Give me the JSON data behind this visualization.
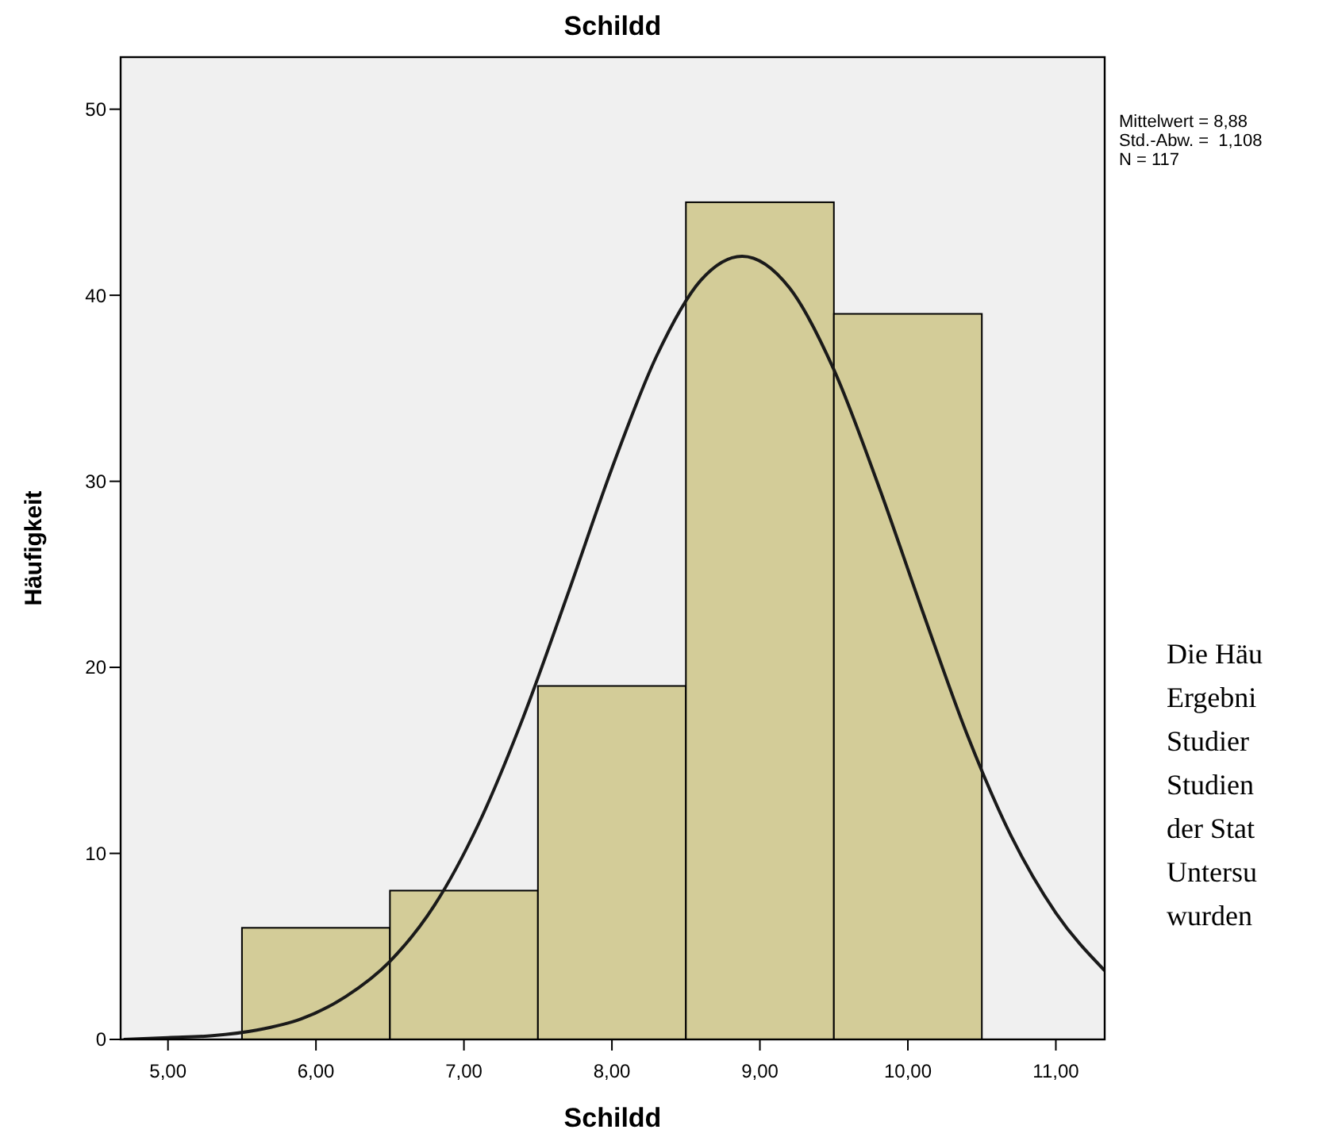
{
  "chart_data": {
    "type": "histogram",
    "title": "Schildd",
    "xlabel": "Schildd",
    "ylabel": "Häufigkeit",
    "bins": [
      5.5,
      6.5,
      7.5,
      8.5,
      9.5,
      10.5
    ],
    "values": [
      6,
      8,
      19,
      45,
      39
    ],
    "color": "#d3cc98",
    "series": [
      {
        "type": "line",
        "color": "#1a1a1a",
        "x": [
          4.7,
          5.0,
          5.3,
          5.6,
          5.9,
          6.2,
          6.5,
          6.8,
          7.1,
          7.4,
          7.7,
          8.0,
          8.3,
          8.6,
          8.88,
          9.2,
          9.5,
          9.8,
          10.1,
          10.4,
          10.7,
          11.0,
          11.33
        ],
        "values": [
          0,
          0.1,
          0.2,
          0.5,
          1.1,
          2.3,
          4.2,
          7.2,
          11.6,
          17.3,
          23.9,
          30.7,
          36.7,
          40.8,
          42.1,
          40.4,
          36.0,
          29.8,
          23.0,
          16.4,
          10.9,
          6.8,
          3.7
        ]
      }
    ],
    "xlim": [
      4.68,
      11.33
    ],
    "ylim": [
      0,
      52.8
    ],
    "xticks": [
      {
        "value": 5,
        "label": "5,00"
      },
      {
        "value": 6,
        "label": "6,00"
      },
      {
        "value": 7,
        "label": "7,00"
      },
      {
        "value": 8,
        "label": "8,00"
      },
      {
        "value": 9,
        "label": "9,00"
      },
      {
        "value": 10,
        "label": "10,00"
      },
      {
        "value": 11,
        "label": "11,00"
      }
    ],
    "yticks": [
      0,
      10,
      20,
      30,
      40,
      50
    ],
    "grid": false,
    "annotations": [
      "Mittelwert = 8,88",
      "Std.-Abw. =  1,108",
      "N = 117",
      "Die Häu",
      "Ergebni",
      "Studier",
      "Studien",
      "der Stat",
      "Untersu",
      "wurden"
    ]
  }
}
